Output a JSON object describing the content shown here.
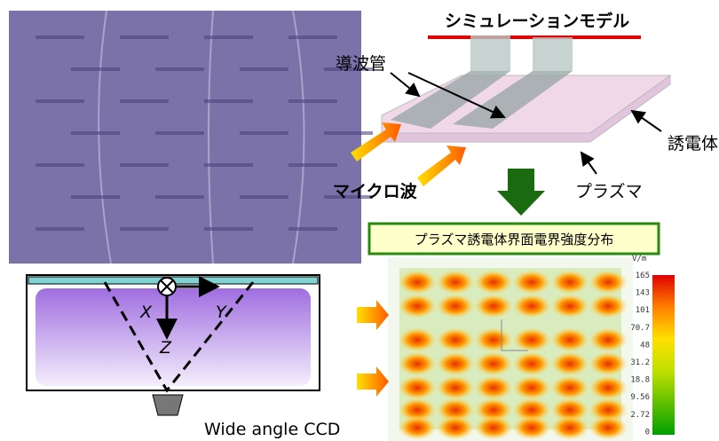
{
  "model_title": "シミュレーションモデル",
  "labels": {
    "waveguide": "導波管",
    "dielectric": "誘電体",
    "microwave": "マイクロ波",
    "plasma": "プラズマ"
  },
  "field_title": "プラズマ誘電体界面電界強度分布",
  "schematic": {
    "x": "X",
    "y": "Y",
    "z": "Z",
    "camera": "Wide angle CCD"
  },
  "colorbar": {
    "unit": "V/m",
    "ticks": [
      "165",
      "143",
      "101",
      "70.7",
      "48",
      "31.2",
      "18.8",
      "9.56",
      "2.72",
      "0"
    ]
  }
}
